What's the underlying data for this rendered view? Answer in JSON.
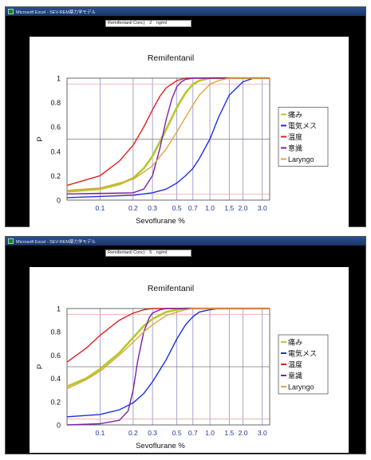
{
  "window": {
    "title": "Microsoft Excel - SEV-REM薬力学モデル"
  },
  "param": {
    "label": "Remifentanil Conc)",
    "unit": "ng/ml"
  },
  "colors": {
    "痛み": "#b5c72a",
    "電気メス": "#1b2fe6",
    "温度": "#e11f1f",
    "意識": "#7d1fa8",
    "Laryngo": "#e0a43a"
  },
  "chart_data": [
    {
      "type": "line",
      "param_value": "2",
      "title": "Remifentanil",
      "xlabel": "Sevoflurane %",
      "ylabel": "P",
      "x_scale": "log",
      "x_ticks": [
        "0.1",
        "0.2",
        "0.3",
        "0.5",
        "0.7",
        "1.0",
        "1.5",
        "2.0",
        "3.0"
      ],
      "y_ticks": [
        "0",
        "0.2",
        "0.4",
        "0.6",
        "0.8",
        "1"
      ],
      "xlim": [
        0.05,
        3.5
      ],
      "ylim": [
        0,
        1
      ],
      "grid": true,
      "legend_position": "right",
      "series": [
        {
          "name": "痛み",
          "x": [
            0.05,
            0.1,
            0.15,
            0.2,
            0.25,
            0.3,
            0.4,
            0.5,
            0.6,
            0.7,
            0.8,
            1.0,
            3.5
          ],
          "y": [
            0.07,
            0.09,
            0.13,
            0.18,
            0.26,
            0.36,
            0.58,
            0.76,
            0.88,
            0.95,
            0.98,
            1.0,
            1.0
          ]
        },
        {
          "name": "電気メス",
          "x": [
            0.05,
            0.2,
            0.3,
            0.4,
            0.5,
            0.6,
            0.7,
            0.8,
            1.0,
            1.2,
            1.5,
            2.0,
            2.5,
            3.5
          ],
          "y": [
            0.02,
            0.04,
            0.06,
            0.09,
            0.14,
            0.2,
            0.26,
            0.34,
            0.5,
            0.68,
            0.86,
            0.97,
            1.0,
            1.0
          ]
        },
        {
          "name": "温度",
          "x": [
            0.05,
            0.1,
            0.15,
            0.2,
            0.25,
            0.3,
            0.35,
            0.4,
            0.5,
            0.6,
            0.7,
            3.5
          ],
          "y": [
            0.12,
            0.2,
            0.32,
            0.45,
            0.6,
            0.74,
            0.85,
            0.92,
            0.98,
            1.0,
            1.0,
            1.0
          ]
        },
        {
          "name": "意識",
          "x": [
            0.05,
            0.2,
            0.25,
            0.3,
            0.35,
            0.4,
            0.45,
            0.5,
            0.55,
            0.6,
            0.7,
            3.5
          ],
          "y": [
            0.05,
            0.06,
            0.09,
            0.2,
            0.42,
            0.66,
            0.83,
            0.93,
            0.97,
            0.99,
            1.0,
            1.0
          ]
        },
        {
          "name": "Laryngo",
          "x": [
            0.05,
            0.1,
            0.2,
            0.3,
            0.4,
            0.5,
            0.6,
            0.7,
            0.8,
            1.0,
            1.2,
            1.5,
            3.5
          ],
          "y": [
            0.08,
            0.1,
            0.17,
            0.28,
            0.42,
            0.56,
            0.68,
            0.78,
            0.86,
            0.95,
            0.98,
            1.0,
            1.0
          ]
        }
      ]
    },
    {
      "type": "line",
      "param_value": "5",
      "title": "Remifentanil",
      "xlabel": "Sevoflurane %",
      "ylabel": "P",
      "x_scale": "log",
      "x_ticks": [
        "0.1",
        "0.2",
        "0.3",
        "0.5",
        "0.7",
        "1.0",
        "1.5",
        "2.0",
        "3.0"
      ],
      "y_ticks": [
        "0",
        "0.2",
        "0.4",
        "0.6",
        "0.8",
        "1"
      ],
      "xlim": [
        0.05,
        3.5
      ],
      "ylim": [
        0,
        1
      ],
      "grid": true,
      "legend_position": "right",
      "series": [
        {
          "name": "痛み",
          "x": [
            0.05,
            0.075,
            0.1,
            0.15,
            0.2,
            0.25,
            0.3,
            0.4,
            0.5,
            0.6,
            0.7,
            3.5
          ],
          "y": [
            0.33,
            0.4,
            0.48,
            0.62,
            0.75,
            0.85,
            0.91,
            0.97,
            0.99,
            1.0,
            1.0,
            1.0
          ]
        },
        {
          "name": "電気メス",
          "x": [
            0.05,
            0.1,
            0.15,
            0.2,
            0.25,
            0.3,
            0.4,
            0.5,
            0.6,
            0.7,
            0.8,
            1.0,
            1.2,
            3.5
          ],
          "y": [
            0.07,
            0.09,
            0.13,
            0.19,
            0.27,
            0.37,
            0.56,
            0.74,
            0.86,
            0.93,
            0.97,
            0.99,
            1.0,
            1.0
          ]
        },
        {
          "name": "温度",
          "x": [
            0.05,
            0.075,
            0.1,
            0.15,
            0.2,
            0.25,
            0.3,
            0.4,
            3.5
          ],
          "y": [
            0.54,
            0.66,
            0.77,
            0.9,
            0.96,
            0.99,
            1.0,
            1.0,
            1.0
          ]
        },
        {
          "name": "意識",
          "x": [
            0.05,
            0.1,
            0.15,
            0.18,
            0.2,
            0.22,
            0.25,
            0.28,
            0.3,
            0.35,
            0.4,
            3.5
          ],
          "y": [
            0.0,
            0.01,
            0.04,
            0.12,
            0.3,
            0.55,
            0.8,
            0.92,
            0.96,
            0.99,
            1.0,
            1.0
          ]
        },
        {
          "name": "Laryngo",
          "x": [
            0.05,
            0.075,
            0.1,
            0.15,
            0.2,
            0.25,
            0.3,
            0.4,
            0.5,
            0.6,
            0.7,
            3.5
          ],
          "y": [
            0.31,
            0.39,
            0.46,
            0.6,
            0.71,
            0.8,
            0.86,
            0.94,
            0.97,
            0.99,
            1.0,
            1.0
          ]
        }
      ]
    }
  ]
}
